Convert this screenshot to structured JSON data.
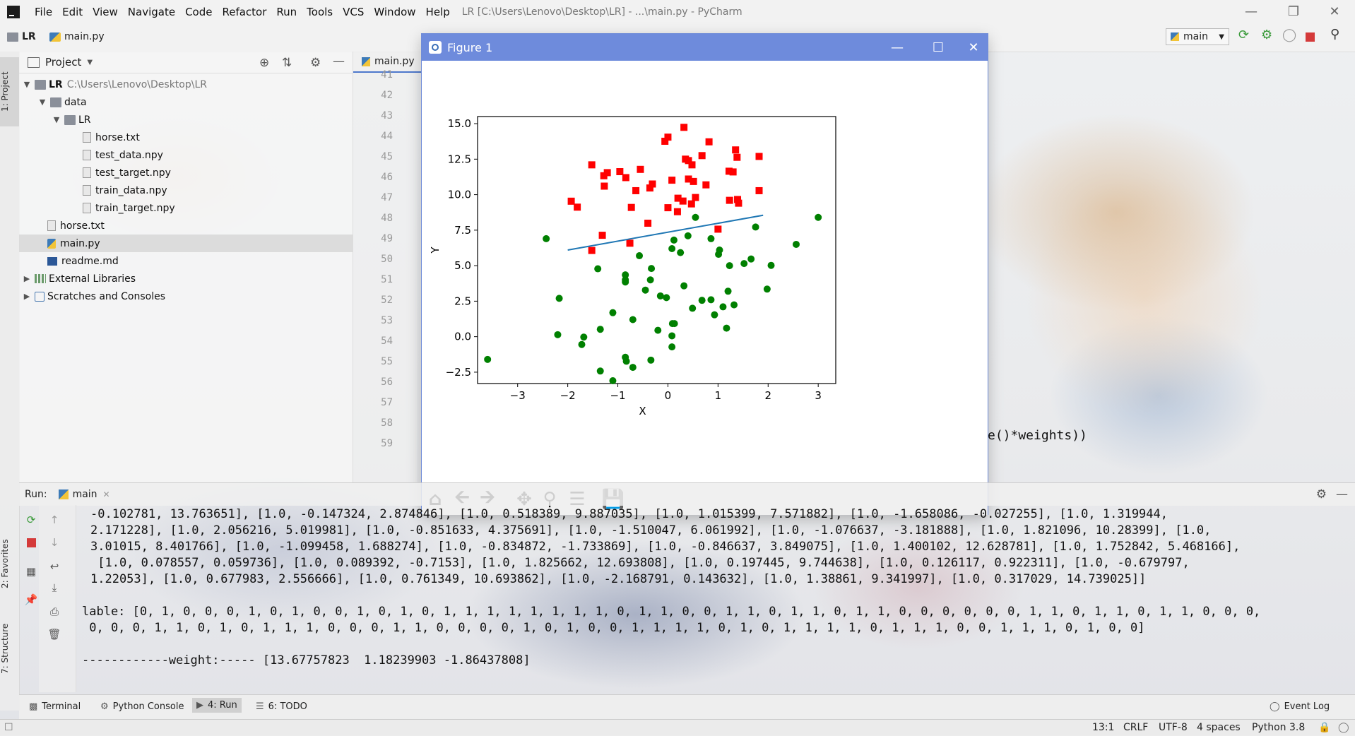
{
  "menubar": {
    "items": [
      "File",
      "Edit",
      "View",
      "Navigate",
      "Code",
      "Refactor",
      "Run",
      "Tools",
      "VCS",
      "Window",
      "Help"
    ],
    "title": "LR [C:\\Users\\Lenovo\\Desktop\\LR] - ...\\main.py - PyCharm"
  },
  "navbar": {
    "crumbs": [
      "LR",
      "main.py"
    ],
    "run_config": "main"
  },
  "stripe": {
    "project_tab": "1: Project",
    "favorites_tab": "2: Favorites",
    "structure_tab": "7: Structure"
  },
  "project": {
    "title": "Project",
    "root_label": "LR",
    "root_path": "C:\\Users\\Lenovo\\Desktop\\LR",
    "items": [
      "data",
      "LR",
      "horse.txt",
      "test_data.npy",
      "test_target.npy",
      "train_data.npy",
      "train_target.npy",
      "horse.txt",
      "main.py",
      "readme.md",
      "External Libraries",
      "Scratches and Consoles"
    ]
  },
  "editor": {
    "tab": "main.py",
    "line_numbers": [
      "41",
      "42",
      "43",
      "44",
      "45",
      "46",
      "47",
      "48",
      "49",
      "50",
      "51",
      "52",
      "53",
      "54",
      "55",
      "56",
      "57",
      "58",
      "59"
    ],
    "code_fragment": "e()*weights))"
  },
  "figure": {
    "title": "Figure 1"
  },
  "chart_data": {
    "type": "scatter",
    "title": "",
    "xlabel": "X",
    "ylabel": "Y",
    "xlim": [
      -3.8,
      3.35
    ],
    "ylim": [
      -3.3,
      15.5
    ],
    "xticks": [
      "−3",
      "−2",
      "−1",
      "0",
      "1",
      "2",
      "3"
    ],
    "yticks": [
      "−2.5",
      "0.0",
      "2.5",
      "5.0",
      "7.5",
      "10.0",
      "12.5",
      "15.0"
    ],
    "xtick_values": [
      -3,
      -2,
      -1,
      0,
      1,
      2,
      3
    ],
    "ytick_values": [
      -2.5,
      0,
      2.5,
      5,
      7.5,
      10,
      12.5,
      15
    ],
    "series": [
      {
        "color": "#ff0000",
        "marker": "square",
        "points": [
          [
            0.32,
            14.74
          ],
          [
            -0.06,
            13.76
          ],
          [
            0.0,
            14.05
          ],
          [
            0.82,
            13.72
          ],
          [
            1.35,
            13.15
          ],
          [
            0.41,
            12.4
          ],
          [
            0.35,
            12.5
          ],
          [
            0.68,
            12.75
          ],
          [
            1.38,
            12.63
          ],
          [
            1.82,
            12.69
          ],
          [
            -1.52,
            12.1
          ],
          [
            0.48,
            12.1
          ],
          [
            -1.21,
            11.55
          ],
          [
            -1.28,
            11.33
          ],
          [
            -0.96,
            11.62
          ],
          [
            -0.84,
            11.2
          ],
          [
            -0.55,
            11.78
          ],
          [
            1.22,
            11.65
          ],
          [
            1.3,
            11.6
          ],
          [
            0.08,
            11.02
          ],
          [
            0.41,
            11.1
          ],
          [
            0.51,
            10.93
          ],
          [
            0.76,
            10.69
          ],
          [
            -1.27,
            10.6
          ],
          [
            -0.64,
            10.28
          ],
          [
            -0.36,
            10.47
          ],
          [
            -0.31,
            10.75
          ],
          [
            0.2,
            9.75
          ],
          [
            0.3,
            9.55
          ],
          [
            1.82,
            10.28
          ],
          [
            0.55,
            9.8
          ],
          [
            -1.93,
            9.54
          ],
          [
            -1.81,
            9.12
          ],
          [
            -0.73,
            9.1
          ],
          [
            0.0,
            9.08
          ],
          [
            0.19,
            8.8
          ],
          [
            0.47,
            9.35
          ],
          [
            1.23,
            9.6
          ],
          [
            1.41,
            9.4
          ],
          [
            1.39,
            9.66
          ],
          [
            -0.4,
            7.99
          ],
          [
            1.0,
            7.57
          ],
          [
            -1.31,
            7.14
          ],
          [
            -0.76,
            6.58
          ],
          [
            -1.52,
            6.07
          ]
        ]
      },
      {
        "color": "#008000",
        "marker": "circle",
        "points": [
          [
            -3.6,
            -1.6
          ],
          [
            -2.43,
            6.9
          ],
          [
            -2.17,
            2.7
          ],
          [
            -2.2,
            0.14
          ],
          [
            -1.68,
            -0.03
          ],
          [
            -1.72,
            -0.55
          ],
          [
            -1.4,
            4.78
          ],
          [
            -1.35,
            0.52
          ],
          [
            -1.35,
            -2.42
          ],
          [
            -1.1,
            1.69
          ],
          [
            -1.1,
            -3.1
          ],
          [
            -0.85,
            4.35
          ],
          [
            -0.85,
            3.85
          ],
          [
            -0.85,
            4.0
          ],
          [
            -0.83,
            -1.73
          ],
          [
            -0.85,
            -1.45
          ],
          [
            -0.7,
            -2.16
          ],
          [
            -0.7,
            1.2
          ],
          [
            -0.57,
            5.7
          ],
          [
            -0.45,
            3.28
          ],
          [
            -0.35,
            4.0
          ],
          [
            -0.33,
            4.8
          ],
          [
            -0.34,
            -1.65
          ],
          [
            -0.2,
            0.45
          ],
          [
            -0.15,
            2.87
          ],
          [
            -0.03,
            2.75
          ],
          [
            0.08,
            6.2
          ],
          [
            0.09,
            0.92
          ],
          [
            0.08,
            -0.72
          ],
          [
            0.08,
            0.06
          ],
          [
            0.12,
            6.8
          ],
          [
            0.13,
            0.92
          ],
          [
            0.25,
            5.92
          ],
          [
            0.32,
            3.58
          ],
          [
            0.4,
            7.1
          ],
          [
            0.49,
            2.0
          ],
          [
            0.55,
            8.4
          ],
          [
            0.68,
            2.56
          ],
          [
            0.86,
            6.9
          ],
          [
            0.86,
            2.6
          ],
          [
            0.93,
            1.54
          ],
          [
            1.01,
            5.8
          ],
          [
            1.03,
            6.1
          ],
          [
            1.1,
            2.1
          ],
          [
            1.17,
            0.6
          ],
          [
            1.2,
            3.2
          ],
          [
            1.23,
            5.0
          ],
          [
            1.32,
            2.24
          ],
          [
            1.52,
            5.15
          ],
          [
            1.66,
            5.47
          ],
          [
            1.75,
            7.72
          ],
          [
            1.98,
            3.35
          ],
          [
            2.06,
            5.02
          ],
          [
            2.56,
            6.5
          ],
          [
            3.0,
            8.4
          ]
        ]
      }
    ],
    "line": {
      "color": "#1f77b4",
      "points": [
        [
          -2.0,
          6.1
        ],
        [
          1.9,
          8.55
        ]
      ]
    }
  },
  "run": {
    "label": "Run:",
    "tab": "main",
    "lines": [
      "-0.102781, 13.763651], [1.0, -0.147324, 2.874846], [1.0, 0.518389, 9.887035], [1.0, 1.015399, 7.571882], [1.0, -1.658086, -0.027255], [1.0, 1.319944,",
      "2.171228], [1.0, 2.056216, 5.019981], [1.0, -0.851633, 4.375691], [1.0, -1.510047, 6.061992], [1.0, -1.076637, -3.181888], [1.0, 1.821096, 10.28399], [1.0,",
      "3.01015, 8.401766], [1.0, -1.099458, 1.688274], [1.0, -0.834872, -1.733869], [1.0, -0.846637, 3.849075], [1.0, 1.400102, 12.628781], [1.0, 1.752842, 5.468166],",
      " [1.0, 0.078557, 0.059736], [1.0, 0.089392, -0.7153], [1.0, 1.825662, 12.693808], [1.0, 0.197445, 9.744638], [1.0, 0.126117, 0.922311], [1.0, -0.679797,",
      "1.22053], [1.0, 0.677983, 2.556666], [1.0, 0.761349, 10.693862], [1.0, -2.168791, 0.143632], [1.0, 1.38861, 9.341997], [1.0, 0.317029, 14.739025]]"
    ],
    "lable_line1": "lable: [0, 1, 0, 0, 0, 1, 0, 1, 0, 0, 1, 0, 1, 0, 1, 1, 1, 1, 1, 1, 1, 1, 0, 1, 1, 0, 0, 1, 1, 0, 1, 1, 0, 1, 1, 0, 0, 0, 0, 0, 0, 1, 1, 0, 1, 1, 0, 1, 1, 0, 0, 0,",
    "lable_line2": " 0, 0, 0, 1, 1, 0, 1, 0, 1, 1, 1, 0, 0, 0, 1, 1, 0, 0, 0, 0, 1, 0, 1, 0, 0, 1, 1, 1, 1, 0, 1, 0, 1, 1, 1, 1, 0, 1, 1, 1, 0, 0, 1, 1, 1, 0, 1, 0, 0]",
    "weight_line": "------------weight:----- [13.67757823  1.18239903 -1.86437808]"
  },
  "bottom_tabs": [
    "Terminal",
    "Python Console",
    "4: Run",
    "6: TODO"
  ],
  "event_log": "Event Log",
  "status": {
    "position": "13:1",
    "line_sep": "CRLF",
    "encoding": "UTF-8",
    "indent": "4 spaces",
    "interpreter": "Python 3.8"
  }
}
